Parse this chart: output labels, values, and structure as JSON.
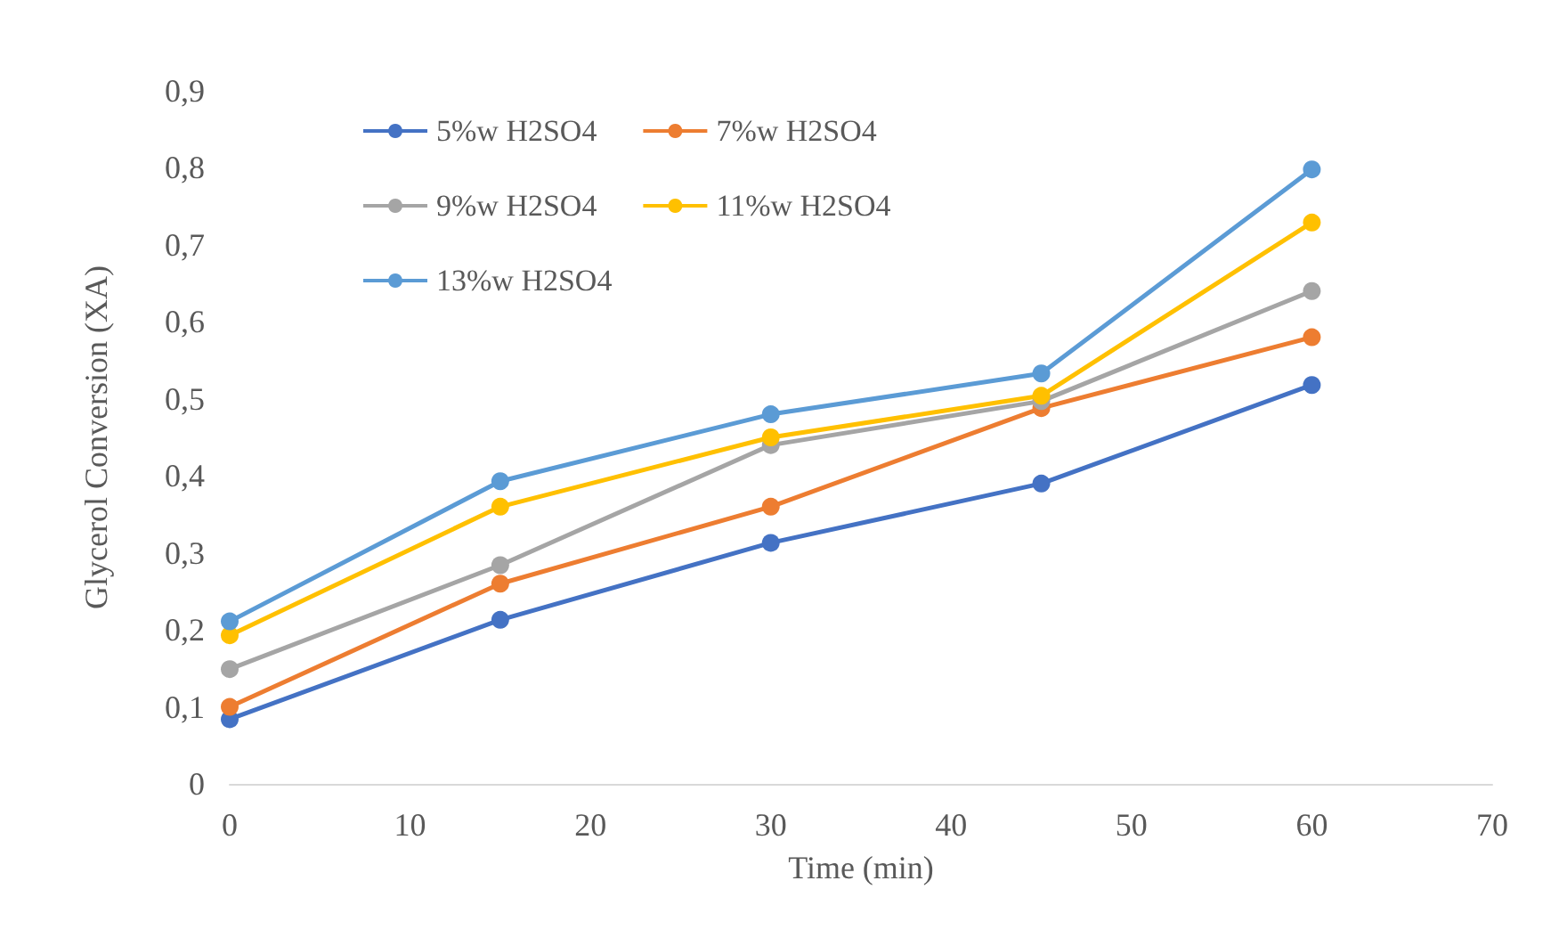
{
  "chart_data": {
    "type": "line",
    "xlabel": "Time (min)",
    "ylabel": "Glycerol Conversion (XA)",
    "x": [
      0,
      15,
      30,
      45,
      60
    ],
    "series": [
      {
        "name": "5%w H2SO4",
        "color": "#4472c4",
        "values": [
          0.084,
          0.213,
          0.313,
          0.39,
          0.518
        ]
      },
      {
        "name": "7%w H2SO4",
        "color": "#ed7d31",
        "values": [
          0.1,
          0.26,
          0.36,
          0.488,
          0.58
        ]
      },
      {
        "name": "9%w H2SO4",
        "color": "#a5a5a5",
        "values": [
          0.149,
          0.284,
          0.44,
          0.497,
          0.64
        ]
      },
      {
        "name": "11%w H2SO4",
        "color": "#ffc000",
        "values": [
          0.193,
          0.36,
          0.45,
          0.504,
          0.729
        ]
      },
      {
        "name": "13%w H2SO4",
        "color": "#5b9bd5",
        "values": [
          0.211,
          0.393,
          0.48,
          0.533,
          0.798
        ]
      }
    ],
    "xlim": [
      0,
      70
    ],
    "xticks": [
      0,
      10,
      20,
      30,
      40,
      50,
      60,
      70
    ],
    "ylim": [
      0,
      0.9
    ],
    "yticks": [
      {
        "value": 0,
        "label": "0"
      },
      {
        "value": 0.1,
        "label": "0,1"
      },
      {
        "value": 0.2,
        "label": "0,2"
      },
      {
        "value": 0.3,
        "label": "0,3"
      },
      {
        "value": 0.4,
        "label": "0,4"
      },
      {
        "value": 0.5,
        "label": "0,5"
      },
      {
        "value": 0.6,
        "label": "0,6"
      },
      {
        "value": 0.7,
        "label": "0,7"
      },
      {
        "value": 0.8,
        "label": "0,8"
      },
      {
        "value": 0.9,
        "label": "0,9"
      }
    ],
    "grid": false,
    "legend": "top left",
    "marker": "circle",
    "line_style": "solid"
  }
}
